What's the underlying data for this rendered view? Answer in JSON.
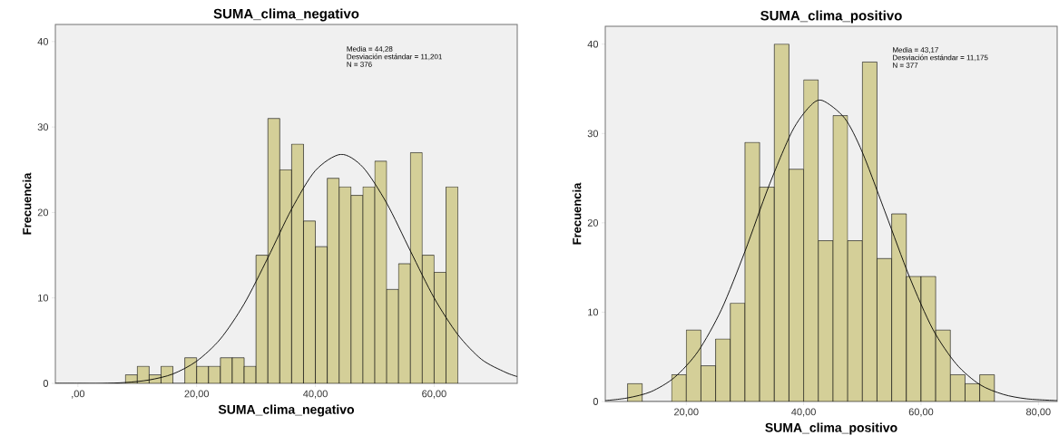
{
  "chart_data": [
    {
      "type": "histogram",
      "title": "SUMA_clima_negativo",
      "xlabel": "SUMA_clima_negativo",
      "ylabel": "Frecuencia",
      "annotations": [
        "Media = 44,28",
        "Desviación estándar = 11,201",
        "N = 376"
      ],
      "xlim": [
        -3.8,
        74
      ],
      "ylim": [
        0,
        42
      ],
      "xticks": [
        {
          "value": 0,
          "label": ",00"
        },
        {
          "value": 20,
          "label": "20,00"
        },
        {
          "value": 40,
          "label": "40,00"
        },
        {
          "value": 60,
          "label": "60,00"
        }
      ],
      "yticks": [
        0,
        10,
        20,
        30,
        40
      ],
      "series": [
        {
          "color": "#d4cf98",
          "bins": [
            8,
            10,
            12,
            14,
            16,
            18,
            20,
            22,
            24,
            26,
            28,
            30,
            32,
            34,
            36,
            38,
            40,
            42,
            44,
            46,
            48,
            50,
            52,
            54,
            56,
            58,
            60,
            62,
            64
          ],
          "values": [
            1,
            2,
            1,
            2,
            0,
            3,
            2,
            2,
            3,
            3,
            2,
            15,
            31,
            25,
            28,
            19,
            16,
            24,
            23,
            22,
            23,
            26,
            11,
            14,
            27,
            15,
            13,
            23
          ]
        },
        {
          "type": "line",
          "color": "#000000",
          "x": [
            -3.8,
            0,
            4,
            8,
            12,
            16,
            20,
            24,
            28,
            32,
            36,
            40,
            44.28,
            48,
            52,
            56,
            60,
            64,
            68,
            72,
            74
          ],
          "values": [
            0.0,
            0.0,
            0.0,
            0.1,
            0.4,
            1.1,
            2.6,
            5.2,
            9.3,
            14.7,
            20.4,
            24.9,
            26.8,
            25.3,
            21.1,
            15.5,
            10.0,
            5.7,
            2.8,
            1.3,
            0.8
          ]
        }
      ]
    },
    {
      "type": "histogram",
      "title": "SUMA_clima_positivo",
      "xlabel": "SUMA_clima_positivo",
      "ylabel": "Frecuencia",
      "annotations": [
        "Media = 43,17",
        "Desviación estándar = 11,175",
        "N = 377"
      ],
      "xlim": [
        6.2,
        83.2
      ],
      "ylim": [
        0,
        42
      ],
      "xticks": [
        {
          "value": 20,
          "label": "20,00"
        },
        {
          "value": 40,
          "label": "40,00"
        },
        {
          "value": 60,
          "label": "60,00"
        },
        {
          "value": 80,
          "label": "80,00"
        }
      ],
      "yticks": [
        0,
        10,
        20,
        30,
        40
      ],
      "series": [
        {
          "color": "#d4cf98",
          "bins": [
            10,
            12.5,
            15,
            17.5,
            20,
            22.5,
            25,
            27.5,
            30,
            32.5,
            35,
            37.5,
            40,
            42.5,
            45,
            47.5,
            50,
            52.5,
            55,
            57.5,
            60,
            62.5,
            65,
            67.5,
            70,
            72.5
          ],
          "values": [
            2,
            0,
            0,
            3,
            8,
            4,
            7,
            11,
            29,
            24,
            40,
            26,
            36,
            18,
            32,
            18,
            38,
            16,
            21,
            14,
            14,
            8,
            3,
            2,
            3
          ]
        },
        {
          "type": "line",
          "color": "#000000",
          "x": [
            6.2,
            10,
            14,
            18,
            22,
            26,
            30,
            34,
            38,
            41,
            43.17,
            47,
            50,
            54,
            58,
            62,
            66,
            70,
            74,
            78,
            83.2
          ],
          "values": [
            0.1,
            0.4,
            1.1,
            2.7,
            5.6,
            10.3,
            16.8,
            24.0,
            30.2,
            33.0,
            33.7,
            31.7,
            27.9,
            21.0,
            14.0,
            8.1,
            4.2,
            1.9,
            0.8,
            0.3,
            0.1
          ]
        }
      ]
    }
  ]
}
